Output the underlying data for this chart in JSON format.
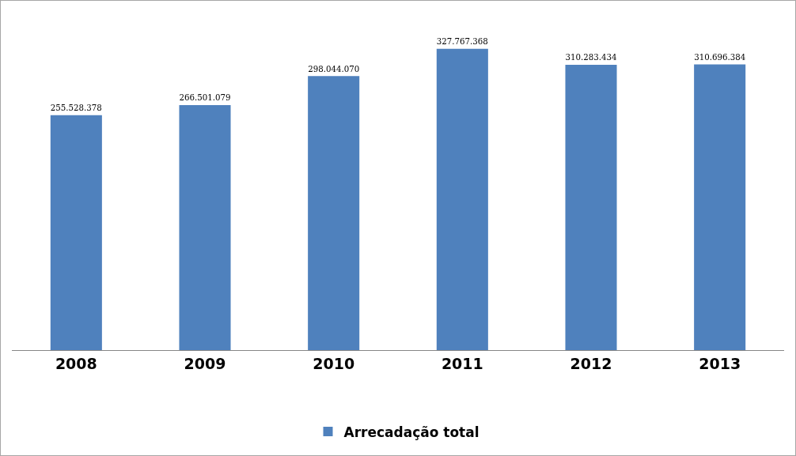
{
  "chart_data": {
    "type": "bar",
    "categories": [
      "2008",
      "2009",
      "2010",
      "2011",
      "2012",
      "2013"
    ],
    "series": [
      {
        "name": "Arrecadação total",
        "color": "#4f81bd",
        "values": [
          255528378,
          266501079,
          298044070,
          327767368,
          310283434,
          310696384
        ],
        "value_labels": [
          "255.528.378",
          "266.501.079",
          "298.044.070",
          "327.767.368",
          "310.283.434",
          "310.696.384"
        ]
      }
    ],
    "legend": "bottom",
    "grid": false
  }
}
